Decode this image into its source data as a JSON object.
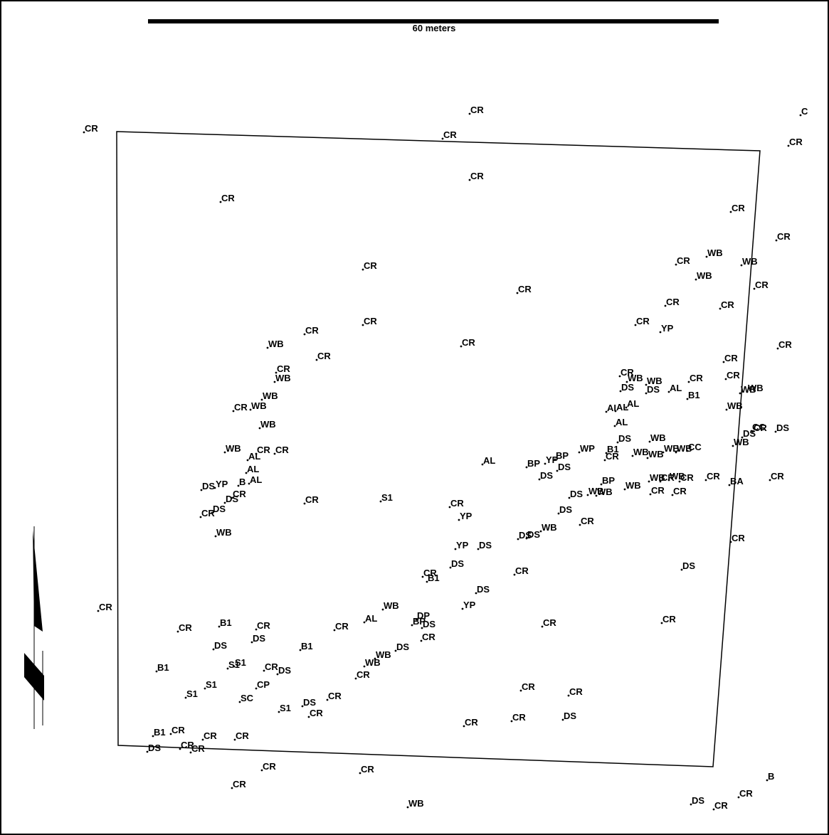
{
  "scale_bar": {
    "label": "60 meters"
  },
  "colors": {
    "ink": "#000000",
    "background": "#ffffff"
  },
  "north_arrow": {
    "icon": "north-arrow-icon"
  },
  "plot_boundary": {
    "shape": "quadrilateral"
  },
  "trees": [
    {
      "code": "CR"
    },
    {
      "code": "CR"
    },
    {
      "code": "CR"
    },
    {
      "code": "CR"
    },
    {
      "code": "C"
    },
    {
      "code": "CR"
    },
    {
      "code": "CR"
    },
    {
      "code": "CR"
    },
    {
      "code": "CR"
    },
    {
      "code": "CR"
    },
    {
      "code": "WB"
    },
    {
      "code": "WB"
    },
    {
      "code": "WB"
    },
    {
      "code": "CR"
    },
    {
      "code": "CR"
    },
    {
      "code": "CR"
    },
    {
      "code": "CR"
    },
    {
      "code": "CR"
    },
    {
      "code": "YP"
    },
    {
      "code": "CR"
    },
    {
      "code": "CR"
    },
    {
      "code": "CR"
    },
    {
      "code": "CR"
    },
    {
      "code": "WB"
    },
    {
      "code": "CR"
    },
    {
      "code": "CR"
    },
    {
      "code": "WB"
    },
    {
      "code": "WB"
    },
    {
      "code": "CR"
    },
    {
      "code": "WB"
    },
    {
      "code": "WB"
    },
    {
      "code": "CR"
    },
    {
      "code": "WB"
    },
    {
      "code": "AL"
    },
    {
      "code": "CR"
    },
    {
      "code": "CR"
    },
    {
      "code": "WB"
    },
    {
      "code": "YP"
    },
    {
      "code": "B"
    },
    {
      "code": "AL"
    },
    {
      "code": "AL"
    },
    {
      "code": "DS"
    },
    {
      "code": "DS"
    },
    {
      "code": "CR"
    },
    {
      "code": "DS"
    },
    {
      "code": "WB"
    },
    {
      "code": "CR"
    },
    {
      "code": "CR"
    },
    {
      "code": "CR"
    },
    {
      "code": "S1"
    },
    {
      "code": "CR"
    },
    {
      "code": "CR"
    },
    {
      "code": "YP"
    },
    {
      "code": "AL"
    },
    {
      "code": "CR"
    },
    {
      "code": "WB"
    },
    {
      "code": "WB"
    },
    {
      "code": "DS"
    },
    {
      "code": "DS"
    },
    {
      "code": "AL"
    },
    {
      "code": "CR"
    },
    {
      "code": "B1"
    },
    {
      "code": "AI"
    },
    {
      "code": "AL"
    },
    {
      "code": "AL"
    },
    {
      "code": "AL"
    },
    {
      "code": "WB"
    },
    {
      "code": "WB"
    },
    {
      "code": "CR"
    },
    {
      "code": "DS"
    },
    {
      "code": "CC"
    },
    {
      "code": "DS"
    },
    {
      "code": "WB"
    },
    {
      "code": "WB"
    },
    {
      "code": "WP"
    },
    {
      "code": "B1"
    },
    {
      "code": "CR"
    },
    {
      "code": "DS"
    },
    {
      "code": "WB"
    },
    {
      "code": "WB"
    },
    {
      "code": "WB"
    },
    {
      "code": "WB"
    },
    {
      "code": "CC"
    },
    {
      "code": "BP"
    },
    {
      "code": "YP"
    },
    {
      "code": "BP"
    },
    {
      "code": "DS"
    },
    {
      "code": "DS"
    },
    {
      "code": "WB"
    },
    {
      "code": "WB"
    },
    {
      "code": "WB"
    },
    {
      "code": "CR"
    },
    {
      "code": "CR"
    },
    {
      "code": "CR"
    },
    {
      "code": "BA"
    },
    {
      "code": "BP"
    },
    {
      "code": "DS"
    },
    {
      "code": "WB"
    },
    {
      "code": "WB"
    },
    {
      "code": "CR"
    },
    {
      "code": "CR"
    },
    {
      "code": "DS"
    },
    {
      "code": "CR"
    },
    {
      "code": "DS"
    },
    {
      "code": "DS"
    },
    {
      "code": "WB"
    },
    {
      "code": "YP"
    },
    {
      "code": "DS"
    },
    {
      "code": "DS"
    },
    {
      "code": "CR"
    },
    {
      "code": "B1"
    },
    {
      "code": "CR"
    },
    {
      "code": "CR"
    },
    {
      "code": "DS"
    },
    {
      "code": "DS"
    },
    {
      "code": "YP"
    },
    {
      "code": "WB"
    },
    {
      "code": "AL"
    },
    {
      "code": "DP"
    },
    {
      "code": "BP"
    },
    {
      "code": "DS"
    },
    {
      "code": "CR"
    },
    {
      "code": "CR"
    },
    {
      "code": "CR"
    },
    {
      "code": "CR"
    },
    {
      "code": "CR"
    },
    {
      "code": "B1"
    },
    {
      "code": "CR"
    },
    {
      "code": "DS"
    },
    {
      "code": "DS"
    },
    {
      "code": "B1"
    },
    {
      "code": "WB"
    },
    {
      "code": "WB"
    },
    {
      "code": "DS"
    },
    {
      "code": "CR"
    },
    {
      "code": "CR"
    },
    {
      "code": "B1"
    },
    {
      "code": "S1"
    },
    {
      "code": "CR"
    },
    {
      "code": "S1"
    },
    {
      "code": "DS"
    },
    {
      "code": "S1"
    },
    {
      "code": "S1"
    },
    {
      "code": "CP"
    },
    {
      "code": "SC"
    },
    {
      "code": "S1"
    },
    {
      "code": "DS"
    },
    {
      "code": "CR"
    },
    {
      "code": "CR"
    },
    {
      "code": "CR"
    },
    {
      "code": "CR"
    },
    {
      "code": "CR"
    },
    {
      "code": "CR"
    },
    {
      "code": "DS"
    },
    {
      "code": "B1"
    },
    {
      "code": "CR"
    },
    {
      "code": "DS"
    },
    {
      "code": "CR"
    },
    {
      "code": "CR"
    },
    {
      "code": "CR"
    },
    {
      "code": "CR"
    },
    {
      "code": "CR"
    },
    {
      "code": "CR"
    },
    {
      "code": "CR"
    },
    {
      "code": "WB"
    },
    {
      "code": "DS"
    },
    {
      "code": "CR"
    },
    {
      "code": "CR"
    },
    {
      "code": "B"
    },
    {
      "code": "CR"
    }
  ]
}
